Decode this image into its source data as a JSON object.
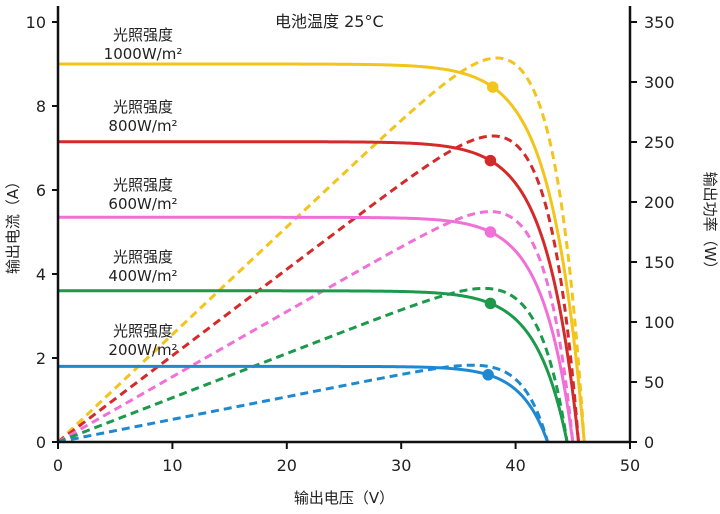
{
  "chart_data": {
    "type": "line",
    "title": "电池温度 25°C",
    "xlabel": "输出电压（V）",
    "ylabel_left": "输出电流（A）",
    "ylabel_right": "输出功率（W）",
    "xlim": [
      0,
      50
    ],
    "ylim_left": [
      0,
      10
    ],
    "ylim_right": [
      0,
      350
    ],
    "xticks": [
      "0",
      "10",
      "20",
      "30",
      "40",
      "50"
    ],
    "yticks_left": [
      "0",
      "2",
      "4",
      "6",
      "8",
      "10"
    ],
    "yticks_right": [
      "0",
      "50",
      "100",
      "150",
      "200",
      "250",
      "300",
      "350"
    ],
    "grid": false,
    "series": [
      {
        "name": "光照强度 1000W/m²",
        "label_line1": "光照强度",
        "label_line2": "1000W/m²",
        "color": "#f2c41c",
        "isc": 9.0,
        "voc": 46.0,
        "vmp": 38.0,
        "imp": 8.45,
        "pmax": 320
      },
      {
        "name": "光照强度 800W/m²",
        "label_line1": "光照强度",
        "label_line2": "800W/m²",
        "color": "#d42a2a",
        "isc": 7.15,
        "voc": 45.5,
        "vmp": 37.8,
        "imp": 6.7,
        "pmax": 255
      },
      {
        "name": "光照强度 600W/m²",
        "label_line1": "光照强度",
        "label_line2": "600W/m²",
        "color": "#f070d8",
        "isc": 5.35,
        "voc": 45.0,
        "vmp": 37.8,
        "imp": 5.0,
        "pmax": 192
      },
      {
        "name": "光照强度 400W/m²",
        "label_line1": "光照强度",
        "label_line2": "400W/m²",
        "color": "#1a9a4a",
        "isc": 3.6,
        "voc": 44.5,
        "vmp": 37.8,
        "imp": 3.3,
        "pmax": 128
      },
      {
        "name": "光照强度 200W/m²",
        "label_line1": "光照强度",
        "label_line2": "200W/m²",
        "color": "#1e88d0",
        "isc": 1.8,
        "voc": 42.8,
        "vmp": 37.6,
        "imp": 1.6,
        "pmax": 64
      }
    ]
  }
}
